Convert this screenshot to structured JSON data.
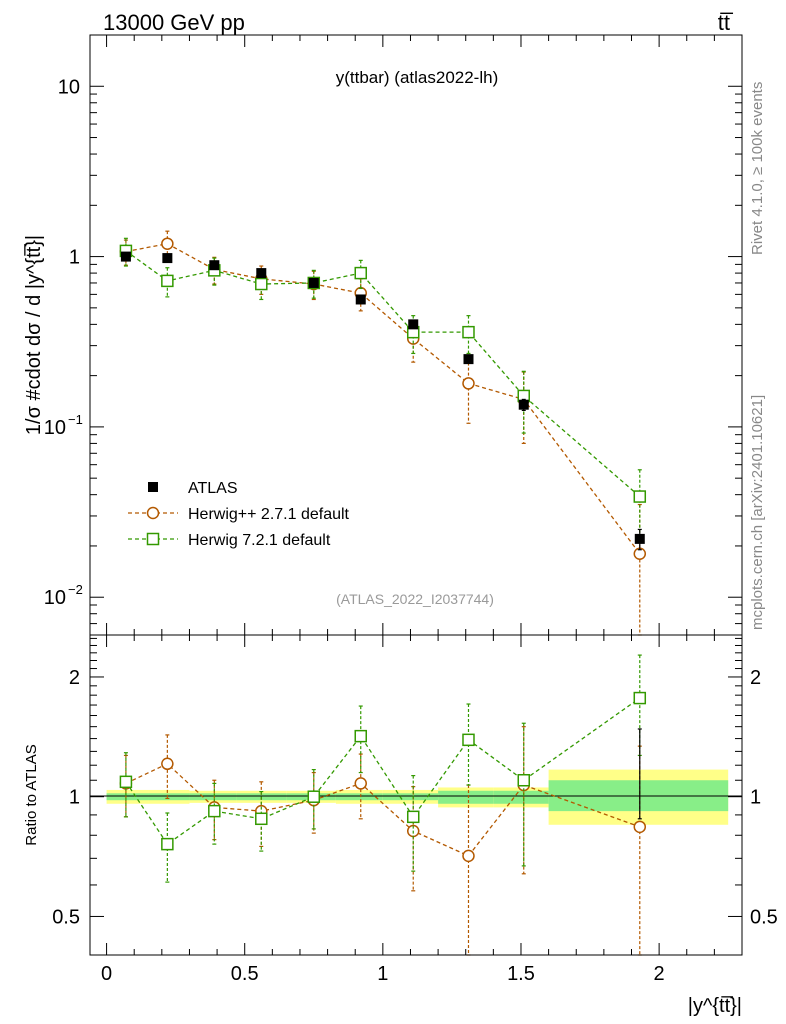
{
  "header": {
    "left": "13000 GeV pp",
    "right": "tt̅"
  },
  "side": {
    "rivet": "Rivet 4.1.0, ≥ 100k events",
    "mcplots": "mcplots.cern.ch [arXiv:2401.10621]"
  },
  "plot": {
    "title": "y(ttbar) (atlas2022-lh)",
    "watermark": "(ATLAS_2022_I2037744)",
    "ylabel": "1/σ #cdot dσ / d |y^{tt̅}|",
    "ratio_ylabel": "Ratio to ATLAS",
    "xlabel": "|y^{tt̅}|"
  },
  "chart_data": [
    {
      "type": "line",
      "panel": "main",
      "yscale": "log",
      "xlim": [
        -0.06,
        2.3
      ],
      "ylim": [
        0.006,
        20
      ],
      "xticks": [
        0,
        0.5,
        1,
        1.5,
        2
      ],
      "yticks": [
        {
          "v": 10,
          "base": "10",
          "exp": ""
        },
        {
          "v": 1,
          "base": "1",
          "exp": ""
        },
        {
          "v": 0.1,
          "base": "10",
          "exp": "−1"
        },
        {
          "v": 0.01,
          "base": "10",
          "exp": "−2"
        }
      ],
      "legend_position": "lower-left",
      "series": [
        {
          "name": "ATLAS",
          "style": "data",
          "color": "#000000",
          "x": [
            0.07,
            0.22,
            0.39,
            0.56,
            0.75,
            0.92,
            1.11,
            1.31,
            1.51,
            1.93
          ],
          "values": [
            1.0,
            0.98,
            0.89,
            0.8,
            0.7,
            0.56,
            0.4,
            0.25,
            0.135,
            0.022
          ],
          "err": [
            0.04,
            0.04,
            0.035,
            0.03,
            0.03,
            0.03,
            0.02,
            0.012,
            0.01,
            0.003
          ]
        },
        {
          "name": "Herwig++ 2.7.1 default",
          "style": "circle",
          "color": "#b35900",
          "x": [
            0.07,
            0.22,
            0.39,
            0.56,
            0.75,
            0.92,
            1.11,
            1.31,
            1.51,
            1.93
          ],
          "values": [
            1.07,
            1.19,
            0.84,
            0.74,
            0.69,
            0.61,
            0.33,
            0.18,
            0.145,
            0.018
          ],
          "err": [
            0.18,
            0.22,
            0.15,
            0.14,
            0.13,
            0.13,
            0.09,
            0.075,
            0.065,
            0.017
          ]
        },
        {
          "name": "Herwig 7.2.1 default",
          "style": "square",
          "color": "#339900",
          "x": [
            0.07,
            0.22,
            0.39,
            0.56,
            0.75,
            0.92,
            1.11,
            1.31,
            1.51,
            1.93
          ],
          "values": [
            1.08,
            0.72,
            0.83,
            0.69,
            0.7,
            0.8,
            0.36,
            0.36,
            0.152,
            0.039
          ],
          "err": [
            0.2,
            0.14,
            0.15,
            0.13,
            0.13,
            0.15,
            0.09,
            0.09,
            0.06,
            0.017
          ]
        }
      ]
    },
    {
      "type": "line",
      "panel": "ratio",
      "yscale": "log",
      "xlim": [
        -0.06,
        2.3
      ],
      "ylim": [
        0.4,
        2.55
      ],
      "yticks": [
        {
          "v": 0.5,
          "label": "0.5"
        },
        {
          "v": 1,
          "label": "1"
        },
        {
          "v": 2,
          "label": "2"
        }
      ],
      "bands": [
        {
          "x": [
            0.0,
            0.15
          ],
          "inner": [
            0.98,
            1.02
          ],
          "outer": [
            0.96,
            1.04
          ]
        },
        {
          "x": [
            0.15,
            0.3
          ],
          "inner": [
            0.98,
            1.02
          ],
          "outer": [
            0.96,
            1.04
          ]
        },
        {
          "x": [
            0.3,
            0.47
          ],
          "inner": [
            0.98,
            1.02
          ],
          "outer": [
            0.965,
            1.035
          ]
        },
        {
          "x": [
            0.47,
            0.65
          ],
          "inner": [
            0.98,
            1.02
          ],
          "outer": [
            0.965,
            1.035
          ]
        },
        {
          "x": [
            0.65,
            0.83
          ],
          "inner": [
            0.98,
            1.02
          ],
          "outer": [
            0.965,
            1.035
          ]
        },
        {
          "x": [
            0.83,
            1.0
          ],
          "inner": [
            0.98,
            1.02
          ],
          "outer": [
            0.96,
            1.04
          ]
        },
        {
          "x": [
            1.0,
            1.2
          ],
          "inner": [
            0.98,
            1.02
          ],
          "outer": [
            0.96,
            1.04
          ]
        },
        {
          "x": [
            1.2,
            1.4
          ],
          "inner": [
            0.96,
            1.035
          ],
          "outer": [
            0.94,
            1.055
          ]
        },
        {
          "x": [
            1.4,
            1.6
          ],
          "inner": [
            0.96,
            1.035
          ],
          "outer": [
            0.94,
            1.055
          ]
        },
        {
          "x": [
            1.6,
            2.25
          ],
          "inner": [
            0.92,
            1.1
          ],
          "outer": [
            0.85,
            1.17
          ]
        }
      ],
      "series": [
        {
          "name": "ATLAS",
          "style": "data",
          "color": "#000000",
          "x": [
            1.93
          ],
          "values": [
            1.0
          ],
          "err_lo": [
            0.12
          ],
          "err_hi": [
            0.48
          ]
        },
        {
          "name": "Herwig++ 2.7.1 default",
          "style": "circle",
          "color": "#b35900",
          "x": [
            0.07,
            0.22,
            0.39,
            0.56,
            0.75,
            0.92,
            1.11,
            1.31,
            1.51,
            1.93
          ],
          "values": [
            1.08,
            1.21,
            0.94,
            0.92,
            0.98,
            1.08,
            0.82,
            0.71,
            1.07,
            0.84
          ],
          "err_lo": [
            0.19,
            0.22,
            0.16,
            0.17,
            0.17,
            0.2,
            0.24,
            0.36,
            0.43,
            0.5
          ],
          "err_hi": [
            0.19,
            0.22,
            0.16,
            0.17,
            0.17,
            0.2,
            0.24,
            0.36,
            0.43,
            0.5
          ]
        },
        {
          "name": "Herwig 7.2.1 default",
          "style": "square",
          "color": "#339900",
          "x": [
            0.07,
            0.22,
            0.39,
            0.56,
            0.75,
            0.92,
            1.11,
            1.31,
            1.51,
            1.93
          ],
          "values": [
            1.09,
            0.76,
            0.92,
            0.88,
            1.0,
            1.42,
            0.89,
            1.39,
            1.1,
            1.77
          ],
          "err_lo": [
            0.2,
            0.15,
            0.16,
            0.15,
            0.17,
            0.27,
            0.24,
            0.32,
            0.43,
            0.5
          ],
          "err_hi": [
            0.2,
            0.15,
            0.16,
            0.15,
            0.17,
            0.27,
            0.24,
            0.32,
            0.43,
            0.5
          ]
        }
      ]
    }
  ]
}
